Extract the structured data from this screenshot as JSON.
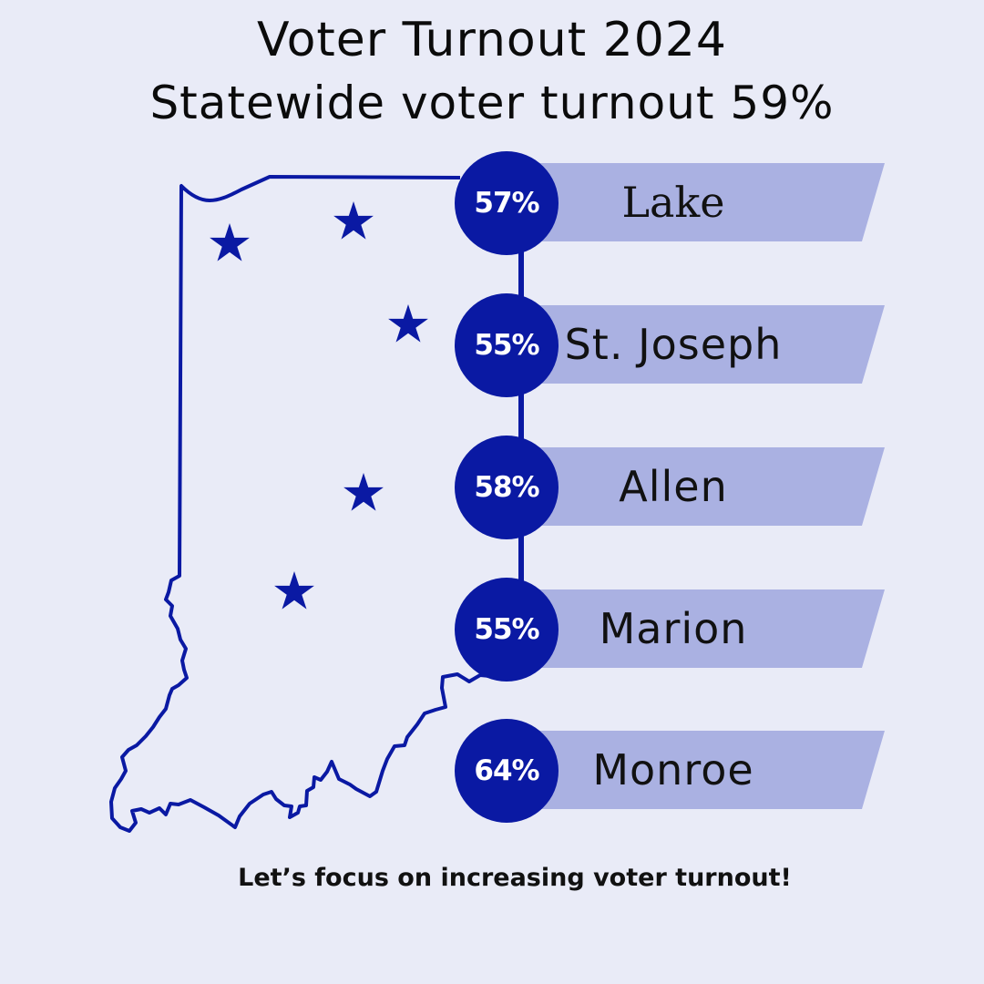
{
  "header": {
    "title": "Voter Turnout 2024",
    "subtitle": "Statewide voter turnout 59%"
  },
  "counties": [
    {
      "name": "Lake",
      "turnout": "57%"
    },
    {
      "name": "St. Joseph",
      "turnout": "55%"
    },
    {
      "name": "Allen",
      "turnout": "58%"
    },
    {
      "name": "Marion",
      "turnout": "55%"
    },
    {
      "name": "Monroe",
      "turnout": "64%"
    }
  ],
  "footer": {
    "message": "Let’s focus on increasing voter turnout!"
  },
  "colors": {
    "background": "#e9ebf7",
    "accent": "#0a19a3",
    "banner": "#aab1e2"
  },
  "icons": [
    "star-icon",
    "indiana-map-outline"
  ]
}
